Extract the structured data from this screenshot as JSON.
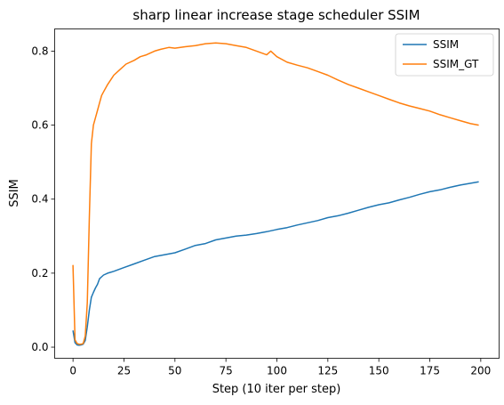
{
  "chart_data": {
    "type": "line",
    "title": "sharp linear increase stage scheduler SSIM",
    "xlabel": "Step (10 iter per step)",
    "ylabel": "SSIM",
    "xlim": [
      -9,
      209
    ],
    "ylim": [
      -0.03,
      0.86
    ],
    "xticks": [
      0,
      25,
      50,
      75,
      100,
      125,
      150,
      175,
      200
    ],
    "xtick_labels": [
      "0",
      "25",
      "50",
      "75",
      "100",
      "125",
      "150",
      "175",
      "200"
    ],
    "yticks": [
      0.0,
      0.2,
      0.4,
      0.6,
      0.8
    ],
    "ytick_labels": [
      "0.0",
      "0.2",
      "0.4",
      "0.6",
      "0.8"
    ],
    "grid": false,
    "legend_position": "top-right",
    "series": [
      {
        "name": "SSIM",
        "color": "#1f77b4",
        "points": [
          [
            0,
            0.045
          ],
          [
            1,
            0.012
          ],
          [
            2,
            0.006
          ],
          [
            3,
            0.005
          ],
          [
            4,
            0.006
          ],
          [
            5,
            0.008
          ],
          [
            6,
            0.018
          ],
          [
            7,
            0.055
          ],
          [
            8,
            0.1
          ],
          [
            9,
            0.135
          ],
          [
            10,
            0.148
          ],
          [
            11,
            0.16
          ],
          [
            12,
            0.17
          ],
          [
            13,
            0.185
          ],
          [
            14,
            0.19
          ],
          [
            15,
            0.195
          ],
          [
            17,
            0.2
          ],
          [
            20,
            0.205
          ],
          [
            25,
            0.215
          ],
          [
            30,
            0.225
          ],
          [
            35,
            0.235
          ],
          [
            40,
            0.245
          ],
          [
            45,
            0.25
          ],
          [
            50,
            0.255
          ],
          [
            55,
            0.265
          ],
          [
            60,
            0.275
          ],
          [
            65,
            0.28
          ],
          [
            70,
            0.29
          ],
          [
            75,
            0.295
          ],
          [
            80,
            0.3
          ],
          [
            85,
            0.303
          ],
          [
            90,
            0.307
          ],
          [
            95,
            0.312
          ],
          [
            100,
            0.318
          ],
          [
            105,
            0.323
          ],
          [
            110,
            0.33
          ],
          [
            115,
            0.336
          ],
          [
            120,
            0.342
          ],
          [
            125,
            0.35
          ],
          [
            130,
            0.355
          ],
          [
            135,
            0.362
          ],
          [
            140,
            0.37
          ],
          [
            145,
            0.378
          ],
          [
            150,
            0.385
          ],
          [
            155,
            0.39
          ],
          [
            160,
            0.398
          ],
          [
            165,
            0.405
          ],
          [
            170,
            0.413
          ],
          [
            175,
            0.42
          ],
          [
            180,
            0.425
          ],
          [
            185,
            0.432
          ],
          [
            190,
            0.438
          ],
          [
            195,
            0.443
          ],
          [
            199,
            0.447
          ]
        ]
      },
      {
        "name": "SSIM_GT",
        "color": "#ff7f0e",
        "points": [
          [
            0,
            0.222
          ],
          [
            1,
            0.02
          ],
          [
            2,
            0.01
          ],
          [
            3,
            0.008
          ],
          [
            4,
            0.008
          ],
          [
            5,
            0.01
          ],
          [
            6,
            0.03
          ],
          [
            7,
            0.12
          ],
          [
            8,
            0.35
          ],
          [
            9,
            0.55
          ],
          [
            10,
            0.6
          ],
          [
            11,
            0.62
          ],
          [
            12,
            0.64
          ],
          [
            13,
            0.66
          ],
          [
            14,
            0.68
          ],
          [
            15,
            0.69
          ],
          [
            17,
            0.71
          ],
          [
            20,
            0.735
          ],
          [
            23,
            0.75
          ],
          [
            26,
            0.765
          ],
          [
            30,
            0.775
          ],
          [
            33,
            0.785
          ],
          [
            36,
            0.79
          ],
          [
            40,
            0.8
          ],
          [
            43,
            0.805
          ],
          [
            47,
            0.81
          ],
          [
            50,
            0.808
          ],
          [
            55,
            0.812
          ],
          [
            60,
            0.815
          ],
          [
            65,
            0.82
          ],
          [
            70,
            0.822
          ],
          [
            75,
            0.82
          ],
          [
            80,
            0.815
          ],
          [
            85,
            0.81
          ],
          [
            90,
            0.8
          ],
          [
            95,
            0.79
          ],
          [
            97,
            0.8
          ],
          [
            100,
            0.785
          ],
          [
            105,
            0.77
          ],
          [
            110,
            0.762
          ],
          [
            115,
            0.755
          ],
          [
            120,
            0.745
          ],
          [
            125,
            0.735
          ],
          [
            130,
            0.722
          ],
          [
            135,
            0.71
          ],
          [
            140,
            0.7
          ],
          [
            145,
            0.69
          ],
          [
            150,
            0.68
          ],
          [
            155,
            0.67
          ],
          [
            160,
            0.66
          ],
          [
            165,
            0.652
          ],
          [
            170,
            0.645
          ],
          [
            175,
            0.638
          ],
          [
            180,
            0.628
          ],
          [
            185,
            0.62
          ],
          [
            190,
            0.612
          ],
          [
            195,
            0.604
          ],
          [
            199,
            0.6
          ]
        ]
      }
    ]
  }
}
